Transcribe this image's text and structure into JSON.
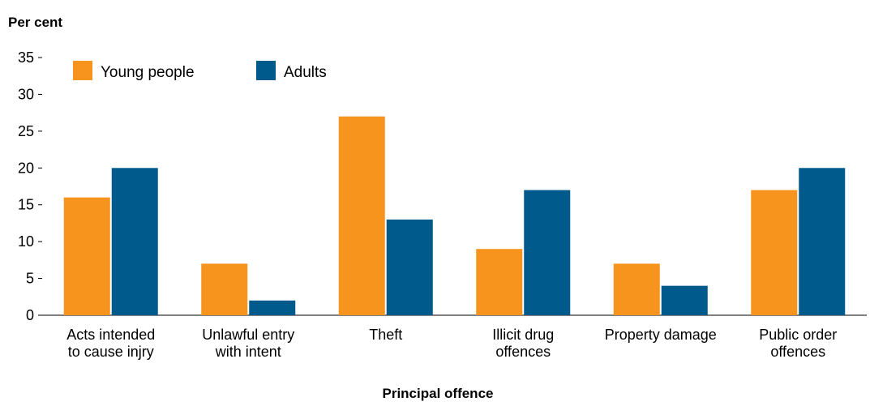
{
  "chart_data": {
    "type": "bar",
    "ylabel": "Per cent",
    "xlabel": "Principal offence",
    "ylim": [
      0,
      35
    ],
    "yticks": [
      0,
      5,
      10,
      15,
      20,
      25,
      30,
      35
    ],
    "grid": false,
    "legend_position": "top-left",
    "categories": [
      [
        "Acts intended",
        "to cause injry"
      ],
      [
        "Unlawful entry",
        "with intent"
      ],
      [
        "Theft"
      ],
      [
        "Illicit drug",
        "offences"
      ],
      [
        "Property damage"
      ],
      [
        "Public order",
        "offences"
      ]
    ],
    "series": [
      {
        "name": "Young people",
        "color": "#F7941D",
        "values": [
          16,
          7,
          27,
          9,
          7,
          17
        ]
      },
      {
        "name": "Adults",
        "color": "#005A8C",
        "values": [
          20,
          2,
          13,
          17,
          4,
          20
        ]
      }
    ]
  }
}
